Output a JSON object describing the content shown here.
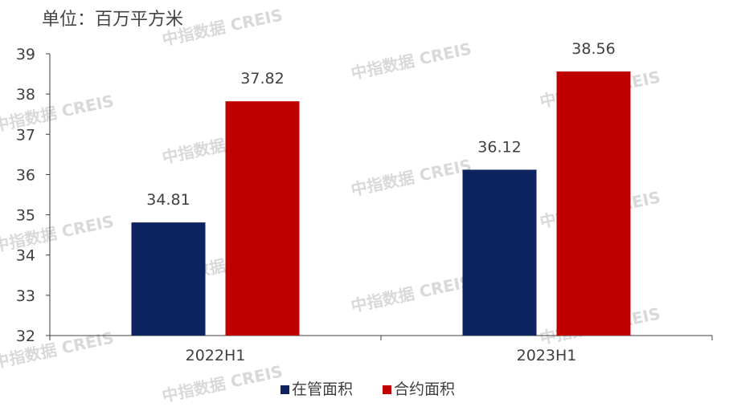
{
  "unit_label": "单位：百万平方米",
  "watermark": "中指数据 CREIS",
  "colors": {
    "series_managed": "#0d2461",
    "series_contract": "#c00000",
    "axis": "#404040",
    "text": "#404040"
  },
  "chart_data": {
    "type": "bar",
    "categories": [
      "2022H1",
      "2023H1"
    ],
    "series": [
      {
        "name": "在管面积",
        "values": [
          34.81,
          36.12
        ]
      },
      {
        "name": "合约面积",
        "values": [
          37.82,
          38.56
        ]
      }
    ],
    "ylim": [
      32,
      39
    ],
    "yticks": [
      "32",
      "33",
      "34",
      "35",
      "36",
      "37",
      "38",
      "39"
    ],
    "data_labels": [
      [
        "34.81",
        "36.12"
      ],
      [
        "37.82",
        "38.56"
      ]
    ],
    "legend": [
      "在管面积",
      "合约面积"
    ],
    "legend_position": "bottom",
    "grid": false
  }
}
